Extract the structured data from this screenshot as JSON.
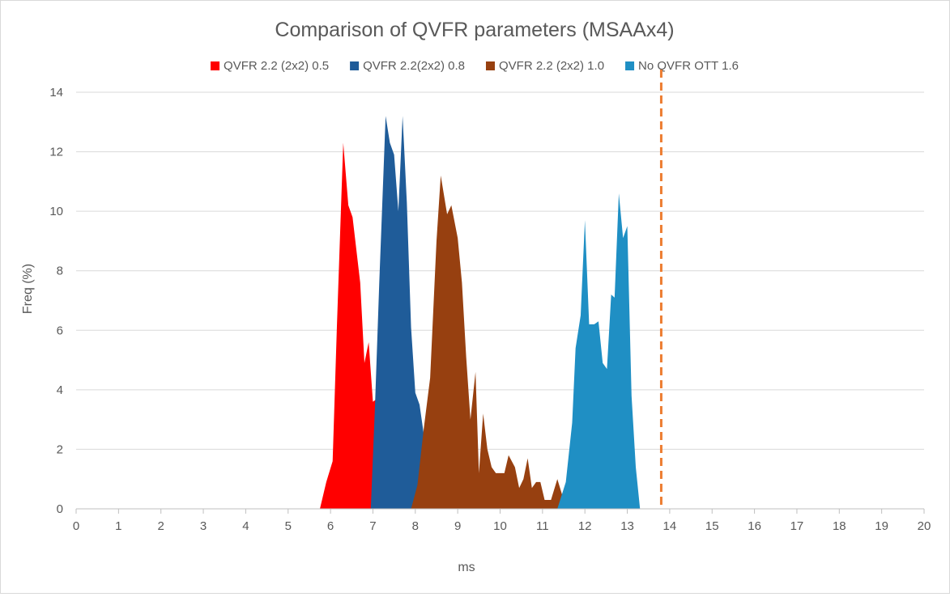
{
  "chart_data": {
    "type": "area",
    "title": "Comparison of QVFR parameters (MSAAx4)",
    "xlabel": "ms",
    "ylabel": "Freq (%)",
    "xlim": [
      0,
      20
    ],
    "ylim": [
      0,
      14
    ],
    "x_ticks": [
      "0",
      "1",
      "2",
      "3",
      "4",
      "5",
      "6",
      "7",
      "8",
      "9",
      "10",
      "11",
      "12",
      "13",
      "14",
      "15",
      "16",
      "17",
      "18",
      "19",
      "20"
    ],
    "y_ticks": [
      "0",
      "2",
      "4",
      "6",
      "8",
      "10",
      "12",
      "14"
    ],
    "grid": "horizontal",
    "legend_position": "top",
    "reference_line": {
      "x": 13.8,
      "color": "#ED7D31",
      "style": "dashed"
    },
    "series": [
      {
        "name": "QVFR 2.2 (2x2) 0.5",
        "color": "#FF0000",
        "points": [
          [
            5.75,
            0
          ],
          [
            5.9,
            0.9
          ],
          [
            6.05,
            1.6
          ],
          [
            6.15,
            6.1
          ],
          [
            6.3,
            12.3
          ],
          [
            6.42,
            10.2
          ],
          [
            6.52,
            9.8
          ],
          [
            6.7,
            7.6
          ],
          [
            6.8,
            4.9
          ],
          [
            6.9,
            5.6
          ],
          [
            7.0,
            3.6
          ],
          [
            7.1,
            3.7
          ],
          [
            7.15,
            0
          ]
        ]
      },
      {
        "name": "QVFR 2.2(2x2) 0.8",
        "color": "#1F5C99",
        "points": [
          [
            6.95,
            0
          ],
          [
            7.05,
            3.5
          ],
          [
            7.15,
            7.6
          ],
          [
            7.3,
            13.2
          ],
          [
            7.4,
            12.3
          ],
          [
            7.5,
            11.9
          ],
          [
            7.6,
            10.0
          ],
          [
            7.7,
            13.2
          ],
          [
            7.8,
            10.3
          ],
          [
            7.9,
            6.1
          ],
          [
            8.0,
            3.9
          ],
          [
            8.1,
            3.5
          ],
          [
            8.2,
            2.5
          ],
          [
            8.3,
            0
          ]
        ]
      },
      {
        "name": "QVFR 2.2 (2x2) 1.0",
        "color": "#974010",
        "points": [
          [
            7.9,
            0
          ],
          [
            8.05,
            0.8
          ],
          [
            8.2,
            2.7
          ],
          [
            8.35,
            4.4
          ],
          [
            8.5,
            9.0
          ],
          [
            8.6,
            11.2
          ],
          [
            8.75,
            9.9
          ],
          [
            8.85,
            10.2
          ],
          [
            9.0,
            9.1
          ],
          [
            9.1,
            7.6
          ],
          [
            9.2,
            5.1
          ],
          [
            9.3,
            3.0
          ],
          [
            9.42,
            4.6
          ],
          [
            9.5,
            1.2
          ],
          [
            9.6,
            3.2
          ],
          [
            9.7,
            2.0
          ],
          [
            9.8,
            1.4
          ],
          [
            9.9,
            1.2
          ],
          [
            10.1,
            1.2
          ],
          [
            10.2,
            1.8
          ],
          [
            10.35,
            1.4
          ],
          [
            10.45,
            0.7
          ],
          [
            10.55,
            1.0
          ],
          [
            10.65,
            1.7
          ],
          [
            10.75,
            0.7
          ],
          [
            10.85,
            0.9
          ],
          [
            10.95,
            0.9
          ],
          [
            11.05,
            0.3
          ],
          [
            11.2,
            0.3
          ],
          [
            11.35,
            1.0
          ],
          [
            11.5,
            0.3
          ],
          [
            11.6,
            0
          ]
        ]
      },
      {
        "name": "No QVFR OTT 1.6",
        "color": "#1F8FC4",
        "points": [
          [
            11.35,
            0
          ],
          [
            11.55,
            0.9
          ],
          [
            11.7,
            2.9
          ],
          [
            11.78,
            5.4
          ],
          [
            11.9,
            6.5
          ],
          [
            12.0,
            9.7
          ],
          [
            12.1,
            6.2
          ],
          [
            12.22,
            6.2
          ],
          [
            12.32,
            6.3
          ],
          [
            12.42,
            4.9
          ],
          [
            12.52,
            4.7
          ],
          [
            12.62,
            7.2
          ],
          [
            12.7,
            7.1
          ],
          [
            12.8,
            10.6
          ],
          [
            12.9,
            9.1
          ],
          [
            13.0,
            9.5
          ],
          [
            13.1,
            3.8
          ],
          [
            13.2,
            1.4
          ],
          [
            13.3,
            0
          ]
        ]
      }
    ]
  }
}
